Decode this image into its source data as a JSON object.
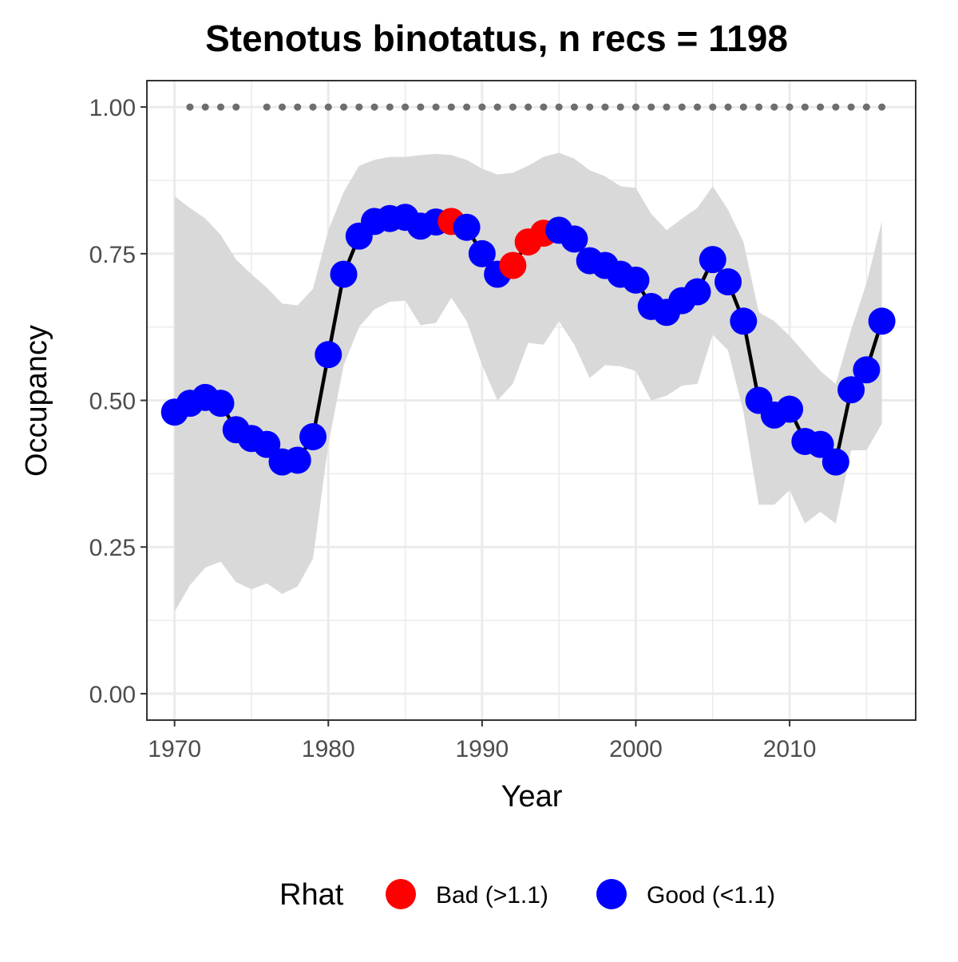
{
  "chart_data": {
    "type": "line",
    "title": "Stenotus binotatus, n recs = 1198",
    "xlabel": "Year",
    "ylabel": "Occupancy",
    "xlim": [
      1968.2,
      2018.2
    ],
    "ylim": [
      -0.045,
      1.045
    ],
    "xticks": [
      1970,
      1980,
      1990,
      2000,
      2010
    ],
    "xtick_labels": [
      "1970",
      "1980",
      "1990",
      "2000",
      "2010"
    ],
    "xminor": [
      1975,
      1985,
      1995,
      2005,
      2015
    ],
    "yticks": [
      0,
      0.25,
      0.5,
      0.75,
      1.0
    ],
    "ytick_labels": [
      "0.00",
      "0.25",
      "0.50",
      "0.75",
      "1.00"
    ],
    "yminor": [
      0.125,
      0.375,
      0.625,
      0.875
    ],
    "grid": true,
    "legend": {
      "position": "bottom",
      "title": "Rhat",
      "entries": [
        {
          "key": "bad",
          "label": "Bad (>1.1)",
          "color": "#ff0000"
        },
        {
          "key": "good",
          "label": "Good (<1.1)",
          "color": "#0000ff"
        }
      ]
    },
    "colors": {
      "line": "#000000",
      "ribbon": "#d9d9d9",
      "record_dots": "#6e6e6e",
      "grid": "#ebebeb",
      "panel_border": "#333333"
    },
    "series": [
      {
        "x": [
          1970,
          1971,
          1972,
          1973,
          1974,
          1975,
          1976,
          1977,
          1978,
          1979,
          1980,
          1981,
          1982,
          1983,
          1984,
          1985,
          1986,
          1987,
          1988,
          1989,
          1990,
          1991,
          1992,
          1993,
          1994,
          1995,
          1996,
          1997,
          1998,
          1999,
          2000,
          2001,
          2002,
          2003,
          2004,
          2005,
          2006,
          2007,
          2008,
          2009,
          2010,
          2011,
          2012,
          2013,
          2014,
          2015,
          2016
        ],
        "occupancy": [
          0.48,
          0.495,
          0.505,
          0.495,
          0.45,
          0.435,
          0.425,
          0.395,
          0.398,
          0.438,
          0.578,
          0.715,
          0.78,
          0.805,
          0.81,
          0.812,
          0.797,
          0.804,
          0.805,
          0.795,
          0.75,
          0.715,
          0.73,
          0.77,
          0.785,
          0.79,
          0.775,
          0.738,
          0.73,
          0.715,
          0.705,
          0.66,
          0.65,
          0.67,
          0.685,
          0.74,
          0.702,
          0.635,
          0.5,
          0.475,
          0.485,
          0.43,
          0.425,
          0.395,
          0.518,
          0.552,
          0.635
        ],
        "lower": [
          0.14,
          0.185,
          0.215,
          0.225,
          0.19,
          0.178,
          0.188,
          0.17,
          0.183,
          0.23,
          0.425,
          0.56,
          0.625,
          0.655,
          0.668,
          0.67,
          0.628,
          0.632,
          0.675,
          0.635,
          0.56,
          0.5,
          0.528,
          0.598,
          0.595,
          0.635,
          0.595,
          0.538,
          0.56,
          0.558,
          0.55,
          0.5,
          0.508,
          0.525,
          0.528,
          0.612,
          0.585,
          0.48,
          0.322,
          0.322,
          0.347,
          0.29,
          0.31,
          0.29,
          0.415,
          0.415,
          0.46
        ],
        "upper": [
          0.848,
          0.828,
          0.81,
          0.782,
          0.74,
          0.715,
          0.692,
          0.665,
          0.662,
          0.69,
          0.79,
          0.855,
          0.9,
          0.91,
          0.915,
          0.915,
          0.918,
          0.92,
          0.918,
          0.91,
          0.895,
          0.885,
          0.888,
          0.9,
          0.915,
          0.922,
          0.912,
          0.892,
          0.882,
          0.865,
          0.862,
          0.818,
          0.79,
          0.81,
          0.828,
          0.865,
          0.825,
          0.77,
          0.65,
          0.635,
          0.61,
          0.58,
          0.55,
          0.528,
          0.62,
          0.7,
          0.805
        ],
        "rhat": [
          "good",
          "good",
          "good",
          "good",
          "good",
          "good",
          "good",
          "good",
          "good",
          "good",
          "good",
          "good",
          "good",
          "good",
          "good",
          "good",
          "good",
          "good",
          "bad",
          "good",
          "good",
          "good",
          "bad",
          "bad",
          "bad",
          "good",
          "good",
          "good",
          "good",
          "good",
          "good",
          "good",
          "good",
          "good",
          "good",
          "good",
          "good",
          "good",
          "good",
          "good",
          "good",
          "good",
          "good",
          "good",
          "good",
          "good",
          "good"
        ]
      }
    ],
    "record_years": [
      1971,
      1972,
      1973,
      1974,
      1976,
      1977,
      1978,
      1979,
      1980,
      1981,
      1982,
      1983,
      1984,
      1985,
      1986,
      1987,
      1988,
      1989,
      1990,
      1991,
      1992,
      1993,
      1994,
      1995,
      1996,
      1997,
      1998,
      1999,
      2000,
      2001,
      2002,
      2003,
      2004,
      2005,
      2006,
      2007,
      2008,
      2009,
      2010,
      2011,
      2012,
      2013,
      2014,
      2015,
      2016
    ],
    "record_y": 1.0
  }
}
